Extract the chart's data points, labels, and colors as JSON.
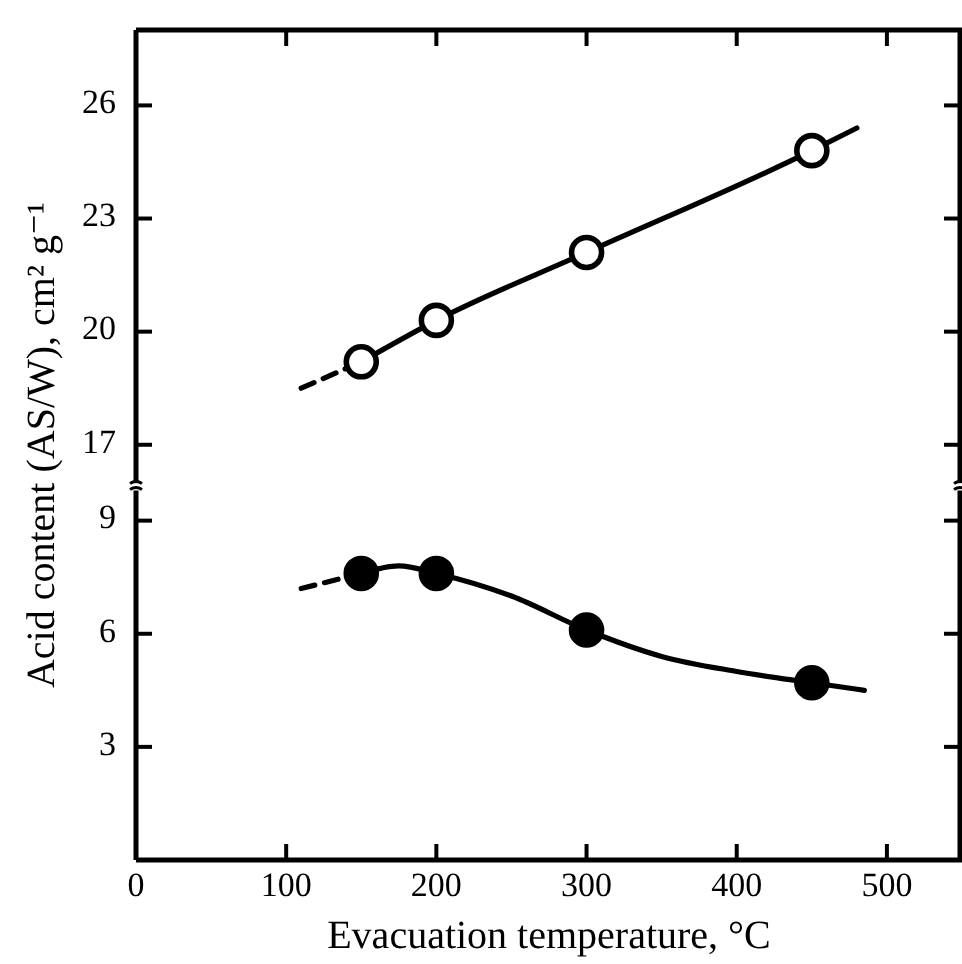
{
  "chart_data": [
    {
      "type": "line",
      "ylabel": "Acid content (AS/W), cm² g⁻¹",
      "xlim": [
        0,
        550
      ],
      "xticks": [
        {
          "value": 0,
          "label": null
        },
        {
          "value": 100,
          "label": null
        },
        {
          "value": 200,
          "label": null
        },
        {
          "value": 300,
          "label": null
        },
        {
          "value": 400,
          "label": null
        },
        {
          "value": 500,
          "label": null
        }
      ],
      "ylim": [
        16,
        28
      ],
      "yticks": [
        17,
        20,
        23,
        26
      ],
      "tick_labels": "y",
      "grid": false,
      "series": [
        {
          "color": "#000000",
          "line_style": "dashed",
          "x": [
            110,
            150
          ],
          "values": [
            18.5,
            19.2
          ]
        },
        {
          "color": "#000000",
          "line_style": "solid",
          "x": [
            150,
            200,
            300,
            450,
            480
          ],
          "values": [
            19.2,
            20.3,
            22.1,
            24.8,
            25.4
          ]
        },
        {
          "type": "scatter",
          "marker": "circle",
          "color": "#ffffff",
          "x": [
            150,
            200,
            300,
            450
          ],
          "values": [
            19.2,
            20.3,
            22.1,
            24.8
          ]
        }
      ]
    },
    {
      "type": "line",
      "xlabel": "Evacuation temperature, °C",
      "xlim": [
        0,
        550
      ],
      "xticks": [
        0,
        100,
        200,
        300,
        400,
        500
      ],
      "ylim": [
        0,
        9.8
      ],
      "yticks": [
        3,
        6,
        9
      ],
      "grid": false,
      "series": [
        {
          "color": "#000000",
          "line_style": "dashed",
          "x": [
            110,
            150
          ],
          "values": [
            7.2,
            7.6
          ]
        },
        {
          "color": "#000000",
          "line_style": "solid",
          "x": [
            150,
            175,
            200,
            250,
            300,
            350,
            400,
            450,
            485
          ],
          "values": [
            7.6,
            7.8,
            7.6,
            7.0,
            6.1,
            5.4,
            5.0,
            4.7,
            4.5
          ]
        },
        {
          "type": "scatter",
          "marker": "circle",
          "color": "#000000",
          "x": [
            150,
            200,
            300,
            450
          ],
          "values": [
            7.6,
            7.6,
            6.1,
            4.7
          ]
        }
      ]
    }
  ]
}
